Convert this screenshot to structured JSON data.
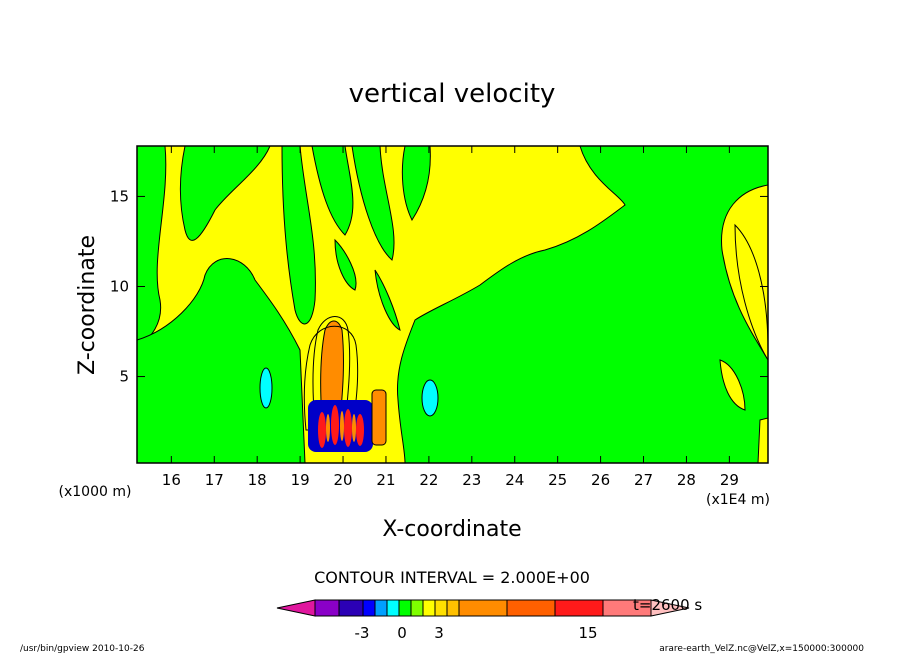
{
  "chart_data": {
    "type": "heatmap",
    "title": "vertical velocity",
    "xlabel": "X-coordinate",
    "ylabel": "Z-coordinate",
    "x_unit_left": "(x1000 m)",
    "x_unit_right": "(x1E4 m)",
    "xlim": [
      15.2,
      29.9
    ],
    "ylim": [
      0.2,
      17.8
    ],
    "x_ticks": [
      16,
      17,
      18,
      19,
      20,
      21,
      22,
      23,
      24,
      25,
      26,
      27,
      28,
      29
    ],
    "y_ticks": [
      5,
      10,
      15
    ],
    "contour_interval_text": "CONTOUR INTERVAL = 2.000E+00",
    "time_label": "t=2600 s",
    "colorbar": {
      "levels_shown": [
        "-3",
        "0",
        "3",
        "15"
      ],
      "colors": [
        "#e0179e",
        "#8a00c8",
        "#2b00b5",
        "#0000ff",
        "#00a0ff",
        "#00ffff",
        "#00ff00",
        "#7fff00",
        "#ffff00",
        "#ffe000",
        "#ffc000",
        "#ff8c00",
        "#ff6000",
        "#ff1a1a",
        "#ff7a7a",
        "#ffc0c0"
      ]
    },
    "palette": {
      "background": "#ffff00",
      "positive_weak": "#ffff00",
      "negative_weak": "#00ff00",
      "negative_mid": "#00ffff",
      "negative_strong": "#0000c8",
      "positive_mid": "#ff8c00",
      "positive_strong": "#ff1a1a"
    }
  },
  "footer": {
    "left": "/usr/bin/gpview 2010-10-26",
    "right": "arare-earth_VelZ.nc@VelZ,x=150000:300000"
  }
}
